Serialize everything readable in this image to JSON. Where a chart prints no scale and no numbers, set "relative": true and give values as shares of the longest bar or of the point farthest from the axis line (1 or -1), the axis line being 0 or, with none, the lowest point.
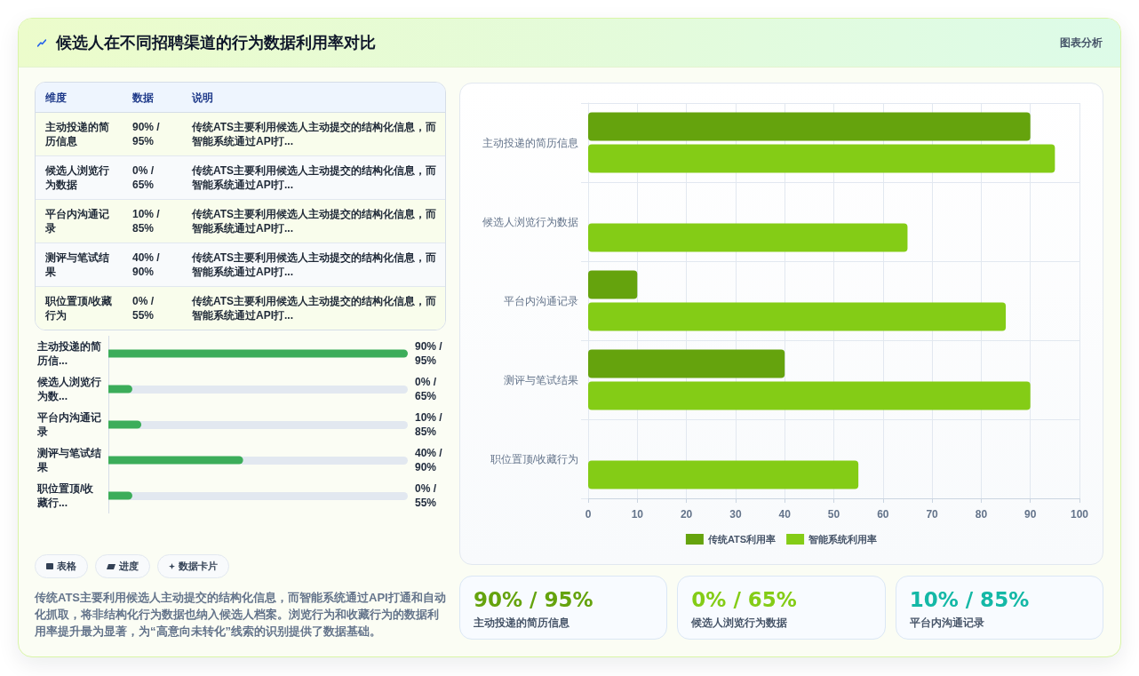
{
  "chart_data": [
    {
      "type": "other",
      "title": "候选人在不同招聘渠道的行为数据利用率对比",
      "annotations": [
        "图表分析"
      ]
    },
    {
      "type": "other",
      "categories": [
        "维度",
        "数据",
        "说明"
      ],
      "annotations": [
        "主动投递的简历信息",
        "90% / 95%",
        "传统ATS主要利用候选人主动提交的结构化信息，而智能系统通过API打...",
        "候选人浏览行为数据",
        "0% / 65%",
        "传统ATS主要利用候选人主动提交的结构化信息，而智能系统通过API打...",
        "平台内沟通记录",
        "10% / 85%",
        "传统ATS主要利用候选人主动提交的结构化信息，而智能系统通过API打...",
        "测评与笔试结果",
        "40% / 90%",
        "传统ATS主要利用候选人主动提交的结构化信息，而智能系统通过API打...",
        "职位置顶/收藏行为",
        "0% / 55%",
        "传统ATS主要利用候选人主动提交的结构化信息，而智能系统通过API打..."
      ]
    },
    {
      "type": "bar",
      "orientation": "horizontal",
      "relative": true,
      "categories": [
        "主动投递的简历信...",
        "候选人浏览行为数...",
        "平台内沟通记录",
        "测评与笔试结果",
        "职位置顶/收藏行..."
      ],
      "values": [
        1,
        0.08,
        0.11,
        0.45,
        0.08
      ],
      "color": "#3cad5a"
    },
    {
      "type": "other",
      "annotations": [
        "90% / 95%",
        "0% / 65%",
        "10% / 85%",
        "40% / 90%",
        "0% / 55%"
      ]
    },
    {
      "type": "other",
      "annotations": [
        "表格",
        "进度",
        "数据卡片"
      ]
    },
    {
      "type": "other",
      "annotations": [
        "传统ATS主要利用候选人主动提交的结构化信息，而智能系统通过API打通和自动化抓取，将非结构化行为数据也纳入候选人档案。浏览行为和收藏行为的数据利用率提升最为显著，为“高意向未转化”线索的识别提供了数据基础。"
      ]
    },
    {
      "type": "bar",
      "orientation": "horizontal",
      "categories": [
        "主动投递的简历信息",
        "候选人浏览行为数据",
        "平台内沟通记录",
        "测评与笔试结果",
        "职位置顶/收藏行为"
      ],
      "series": [
        {
          "name": "传统ATS利用率",
          "color": "#65a30d",
          "values": [
            90,
            0,
            10,
            40,
            0
          ]
        },
        {
          "name": "智能系统利用率",
          "color": "#84cc16",
          "values": [
            95,
            65,
            85,
            90,
            55
          ]
        }
      ],
      "xlim": [
        0,
        100
      ],
      "xticks": [
        0,
        10,
        20,
        30,
        40,
        50,
        60,
        70,
        80,
        90,
        100
      ],
      "grid": true,
      "legend": "bottom"
    },
    {
      "type": "other",
      "categories": [
        "主动投递的简历信息",
        "候选人浏览行为数据",
        "平台内沟通记录"
      ],
      "annotations": [
        "90% / 95%",
        "0% / 65%",
        "10% / 85%"
      ]
    }
  ]
}
